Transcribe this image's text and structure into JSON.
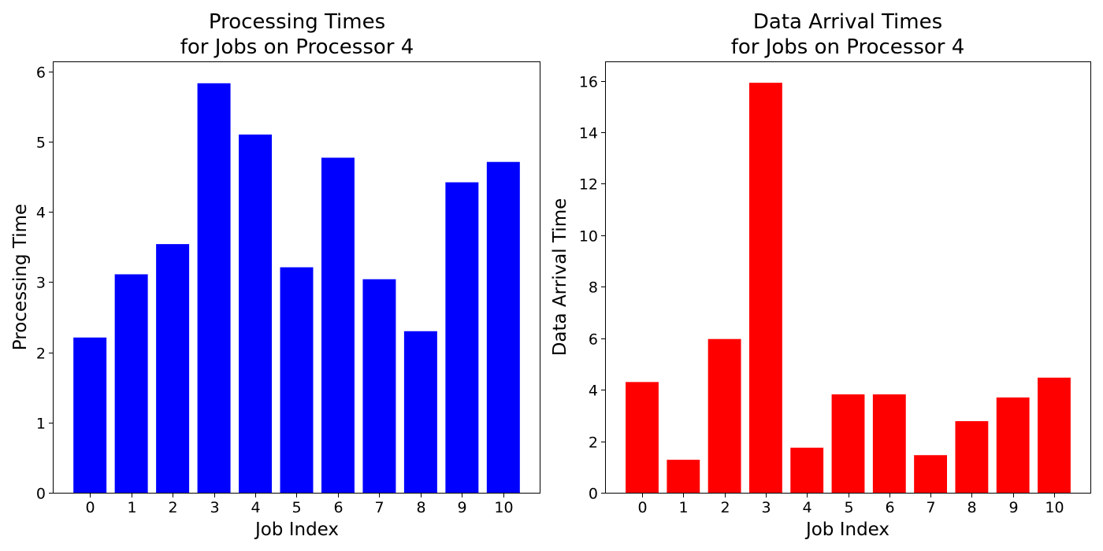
{
  "chart_data": [
    {
      "type": "bar",
      "title": "Processing Times\nfor Jobs on Processor 4",
      "title_lines": [
        "Processing Times",
        "for Jobs on Processor 4"
      ],
      "xlabel": "Job Index",
      "ylabel": "Processing Time",
      "categories": [
        "0",
        "1",
        "2",
        "3",
        "4",
        "5",
        "6",
        "7",
        "8",
        "9",
        "10"
      ],
      "values": [
        2.21,
        3.11,
        3.54,
        5.83,
        5.1,
        3.21,
        4.77,
        3.04,
        2.3,
        4.42,
        4.71
      ],
      "ylim": [
        0,
        6.13
      ],
      "yticks": [
        "0",
        "1",
        "2",
        "3",
        "4",
        "5",
        "6"
      ],
      "ytick_values": [
        0,
        1,
        2,
        3,
        4,
        5,
        6
      ],
      "color": "#0000ff",
      "grid": false,
      "legend": false
    },
    {
      "type": "bar",
      "title": "Data Arrival Times\nfor Jobs on Processor 4",
      "title_lines": [
        "Data Arrival Times",
        "for Jobs on Processor 4"
      ],
      "xlabel": "Job Index",
      "ylabel": "Data Arrival Time",
      "categories": [
        "0",
        "1",
        "2",
        "3",
        "4",
        "5",
        "6",
        "7",
        "8",
        "9",
        "10"
      ],
      "values": [
        4.3,
        1.28,
        5.97,
        15.92,
        1.75,
        3.82,
        3.82,
        1.46,
        2.78,
        3.7,
        4.47
      ],
      "ylim": [
        0,
        16.72
      ],
      "yticks": [
        "0",
        "2",
        "4",
        "6",
        "8",
        "10",
        "12",
        "14",
        "16"
      ],
      "ytick_values": [
        0,
        2,
        4,
        6,
        8,
        10,
        12,
        14,
        16
      ],
      "color": "#ff0000",
      "grid": false,
      "legend": false
    }
  ]
}
